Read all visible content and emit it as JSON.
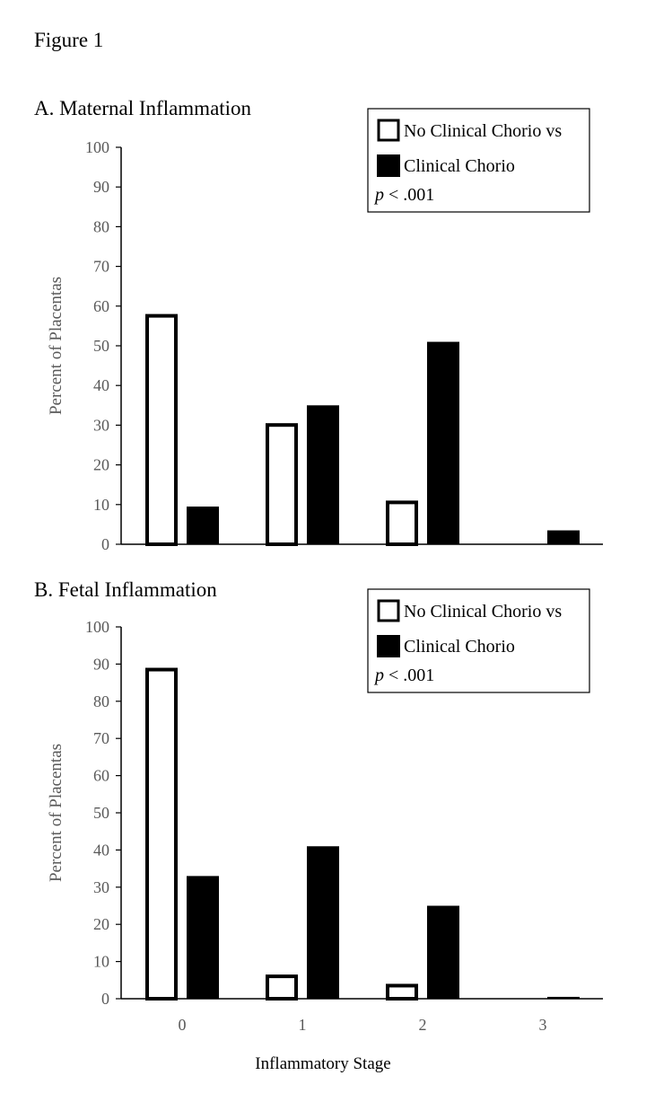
{
  "figure_label": "Figure 1",
  "xlabel": "Inflammatory Stage",
  "chart_data": [
    {
      "type": "bar",
      "title": "A. Maternal Inflammation",
      "xlabel": "Inflammatory Stage",
      "ylabel": "Percent of Placentas",
      "ylim": [
        0,
        100
      ],
      "yticks": [
        "0",
        "10",
        "20",
        "30",
        "40",
        "50",
        "60",
        "70",
        "80",
        "90",
        "100"
      ],
      "categories": [
        "0",
        "1",
        "2",
        "3"
      ],
      "show_category_labels": false,
      "series": [
        {
          "name": "No Clinical Chorio vs",
          "fill": "#ffffff",
          "stroke": "#000000",
          "values": [
            58,
            30.5,
            11,
            null
          ]
        },
        {
          "name": "Clinical Chorio",
          "fill": "#000000",
          "stroke": "#000000",
          "values": [
            9.5,
            35,
            51,
            3.5
          ]
        }
      ],
      "legend": {
        "position": "top-right",
        "entries": [
          "No Clinical Chorio vs",
          "Clinical Chorio"
        ],
        "p_symbol": "p",
        "p_text": " < .001"
      }
    },
    {
      "type": "bar",
      "title": "B. Fetal Inflammation",
      "xlabel": "Inflammatory Stage",
      "ylabel": "Percent of Placentas",
      "ylim": [
        0,
        100
      ],
      "yticks": [
        "0",
        "10",
        "20",
        "30",
        "40",
        "50",
        "60",
        "70",
        "80",
        "90",
        "100"
      ],
      "categories": [
        "0",
        "1",
        "2",
        "3"
      ],
      "show_category_labels": true,
      "series": [
        {
          "name": "No Clinical Chorio vs",
          "fill": "#ffffff",
          "stroke": "#000000",
          "values": [
            89,
            6.5,
            4,
            null
          ]
        },
        {
          "name": "Clinical Chorio",
          "fill": "#000000",
          "stroke": "#000000",
          "values": [
            33,
            41,
            25,
            0.5
          ]
        }
      ],
      "legend": {
        "position": "top-right",
        "entries": [
          "No Clinical Chorio vs",
          "Clinical Chorio"
        ],
        "p_symbol": "p",
        "p_text": " < .001"
      }
    }
  ]
}
